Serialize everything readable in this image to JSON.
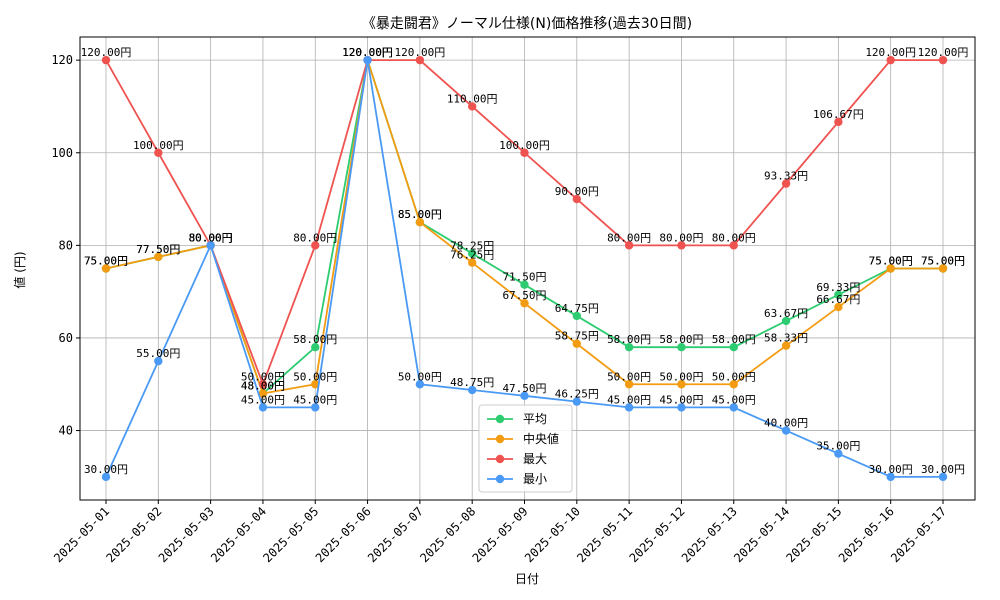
{
  "chart_data": {
    "type": "line",
    "title": "《暴走闘君》ノーマル仕様(N)価格推移(過去30日間)",
    "xlabel": "日付",
    "ylabel": "値 (円)",
    "ylim": [
      25,
      125
    ],
    "yticks": [
      40,
      60,
      80,
      100,
      120
    ],
    "grid": true,
    "legend_position": "bottom-center",
    "categories": [
      "2025-05-01",
      "2025-05-02",
      "2025-05-03",
      "2025-05-04",
      "2025-05-05",
      "2025-05-06",
      "2025-05-07",
      "2025-05-08",
      "2025-05-09",
      "2025-05-10",
      "2025-05-11",
      "2025-05-12",
      "2025-05-13",
      "2025-05-14",
      "2025-05-15",
      "2025-05-16",
      "2025-05-17"
    ],
    "series": [
      {
        "name": "平均",
        "color": "#2ecc71",
        "values": [
          75,
          77.5,
          80,
          48,
          58,
          120,
          85,
          78.25,
          71.5,
          64.75,
          58,
          58,
          58,
          63.67,
          69.33,
          75,
          75
        ],
        "labels": [
          "75.00円",
          "77.50円",
          "80.00円",
          "48.00円",
          "58.00円",
          "120.00円",
          "85.00円",
          "78.25円",
          "71.50円",
          "64.75円",
          "58.00円",
          "58.00円",
          "58.00円",
          "63.67円",
          "69.33円",
          "75.00円",
          "75.00円"
        ]
      },
      {
        "name": "中央値",
        "color": "#f39c12",
        "values": [
          75,
          77.5,
          80,
          48,
          50,
          120,
          85,
          76.25,
          67.5,
          58.75,
          50,
          50,
          50,
          58.33,
          66.67,
          75,
          75
        ],
        "labels": [
          "75.00円",
          "77.50円",
          "80.00円",
          "48.00円",
          "50.00円",
          "120.00円",
          "85.00円",
          "76.25円",
          "67.50円",
          "58.75円",
          "50.00円",
          "50.00円",
          "50.00円",
          "58.33円",
          "66.67円",
          "75.00円",
          "75.00円"
        ]
      },
      {
        "name": "最大",
        "color": "#ef5350",
        "values": [
          120,
          100,
          80,
          50,
          80,
          120,
          120,
          110,
          100,
          90,
          80,
          80,
          80,
          93.33,
          106.67,
          120,
          120
        ],
        "labels": [
          "120.00円",
          "100.00円",
          "80.00円",
          "50.00円",
          "80.00円",
          "120.00円",
          "120.00円",
          "110.00円",
          "100.00円",
          "90.00円",
          "80.00円",
          "80.00円",
          "80.00円",
          "93.33円",
          "106.67円",
          "120.00円",
          "120.00円"
        ]
      },
      {
        "name": "最小",
        "color": "#4a9af5",
        "values": [
          30,
          55,
          80,
          45,
          45,
          120,
          50,
          48.75,
          47.5,
          46.25,
          45,
          45,
          45,
          40,
          35,
          30,
          30
        ],
        "labels": [
          "30.00円",
          "55.00円",
          "80.00円",
          "45.00円",
          "45.00円",
          "120.00円",
          "50.00円",
          "48.75円",
          "47.50円",
          "46.25円",
          "45.00円",
          "45.00円",
          "45.00円",
          "40.00円",
          "35.00円",
          "30.00円",
          "30.00円"
        ]
      }
    ]
  }
}
